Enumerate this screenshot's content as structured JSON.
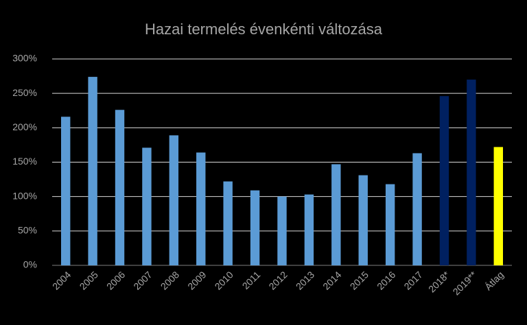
{
  "chart_data": {
    "type": "bar",
    "title": "Hazai termelés évenkénti változása",
    "categories": [
      "2004",
      "2005",
      "2006",
      "2007",
      "2008",
      "2009",
      "2010",
      "2011",
      "2012",
      "2013",
      "2014",
      "2015",
      "2016",
      "2017",
      "2018*",
      "2019**",
      "Átlag"
    ],
    "values": [
      216,
      274,
      226,
      171,
      189,
      164,
      122,
      109,
      100,
      103,
      147,
      131,
      118,
      163,
      246,
      270,
      172
    ],
    "colors": [
      "#5b9bd5",
      "#5b9bd5",
      "#5b9bd5",
      "#5b9bd5",
      "#5b9bd5",
      "#5b9bd5",
      "#5b9bd5",
      "#5b9bd5",
      "#5b9bd5",
      "#5b9bd5",
      "#5b9bd5",
      "#5b9bd5",
      "#5b9bd5",
      "#5b9bd5",
      "#002060",
      "#002060",
      "#ffff00"
    ],
    "ylim": [
      0,
      300
    ],
    "yticks": [
      {
        "value": 0,
        "label": "0%"
      },
      {
        "value": 50,
        "label": "50%"
      },
      {
        "value": 100,
        "label": "100%"
      },
      {
        "value": 150,
        "label": "150%"
      },
      {
        "value": 200,
        "label": "200%"
      },
      {
        "value": 250,
        "label": "250%"
      },
      {
        "value": 300,
        "label": "300%"
      }
    ],
    "grid": true
  }
}
